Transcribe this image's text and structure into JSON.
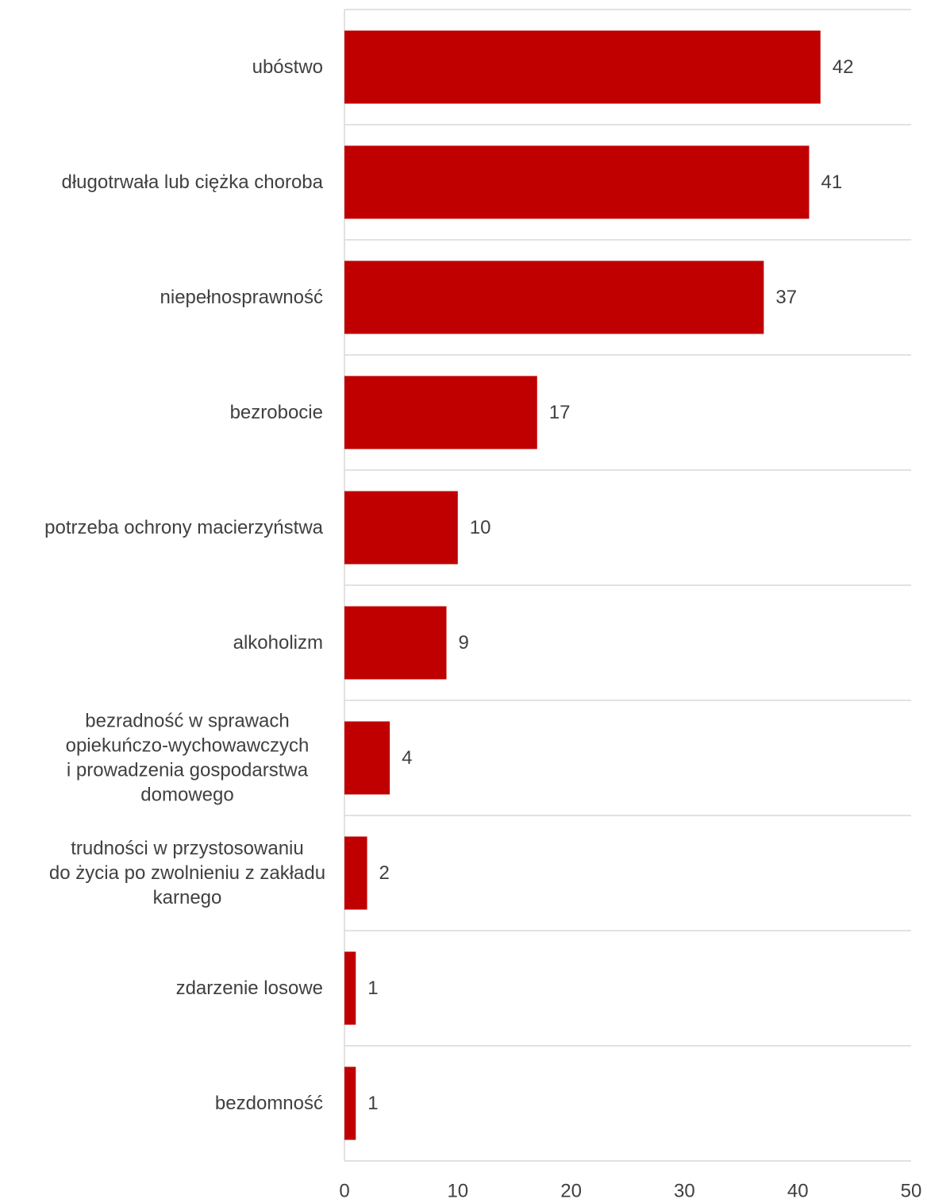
{
  "chart_data": {
    "type": "bar",
    "orientation": "horizontal",
    "categories": [
      "ubóstwo",
      "długotrwała lub ciężka choroba",
      "niepełnosprawność",
      "bezrobocie",
      "potrzeba ochrony macierzyństwa",
      "alkoholizm",
      "bezradność w sprawach opiekuńczo-wychowawczych i prowadzenia gospodarstwa domowego",
      "trudności w przystosowaniu do życia po zwolnieniu z zakładu karnego",
      "zdarzenie losowe",
      "bezdomność"
    ],
    "category_lines": [
      [
        "ubóstwo"
      ],
      [
        "długotrwała lub ciężka choroba"
      ],
      [
        "niepełnosprawność"
      ],
      [
        "bezrobocie"
      ],
      [
        "potrzeba ochrony macierzyństwa"
      ],
      [
        "alkoholizm"
      ],
      [
        "bezradność w sprawach",
        "opiekuńczo-wychowawczych",
        "i prowadzenia gospodarstwa",
        "domowego"
      ],
      [
        "trudności w przystosowaniu",
        "do życia po zwolnieniu z zakładu",
        "karnego"
      ],
      [
        "zdarzenie losowe"
      ],
      [
        "bezdomność"
      ]
    ],
    "values": [
      42,
      41,
      37,
      17,
      10,
      9,
      4,
      2,
      1,
      1
    ],
    "data_labels": [
      "42",
      "41",
      "37",
      "17",
      "10",
      "9",
      "4",
      "2",
      "1",
      "1"
    ],
    "x_ticks": [
      "0",
      "10",
      "20",
      "30",
      "40",
      "50"
    ],
    "xlim": [
      0,
      50
    ],
    "title": "",
    "xlabel": "",
    "ylabel": "",
    "grid": "horizontal separators between categories",
    "legend": "none",
    "colors": {
      "bar": "#c00000",
      "grid": "#d9d9d9",
      "text": "#404040"
    }
  }
}
